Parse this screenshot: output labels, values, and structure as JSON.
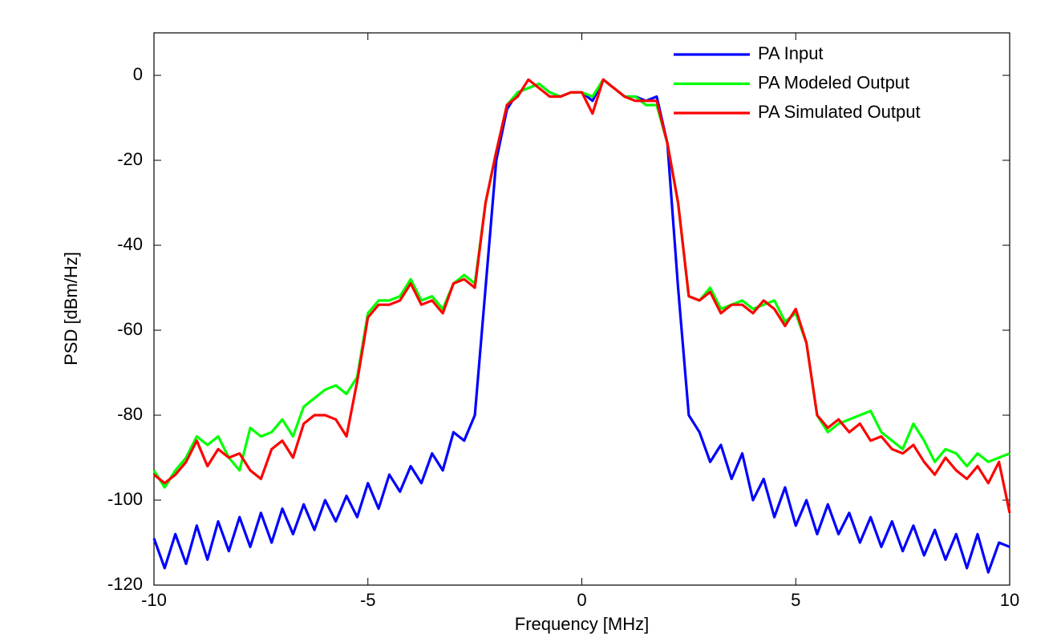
{
  "chart_data": {
    "type": "line",
    "xlabel": "Frequency [MHz]",
    "ylabel": "PSD [dBm/Hz]",
    "x": [
      -10,
      -9.75,
      -9.5,
      -9.25,
      -9,
      -8.75,
      -8.5,
      -8.25,
      -8,
      -7.75,
      -7.5,
      -7.25,
      -7,
      -6.75,
      -6.5,
      -6.25,
      -6,
      -5.75,
      -5.5,
      -5.25,
      -5,
      -4.75,
      -4.5,
      -4.25,
      -4,
      -3.75,
      -3.5,
      -3.25,
      -3,
      -2.75,
      -2.5,
      -2.25,
      -2,
      -1.75,
      -1.5,
      -1.25,
      -1,
      -0.75,
      -0.5,
      -0.25,
      0,
      0.25,
      0.5,
      0.75,
      1,
      1.25,
      1.5,
      1.75,
      2,
      2.25,
      2.5,
      2.75,
      3,
      3.25,
      3.5,
      3.75,
      4,
      4.25,
      4.5,
      4.75,
      5,
      5.25,
      5.5,
      5.75,
      6,
      6.25,
      6.5,
      6.75,
      7,
      7.25,
      7.5,
      7.75,
      8,
      8.25,
      8.5,
      8.75,
      9,
      9.25,
      9.5,
      9.75,
      10
    ],
    "series": [
      {
        "name": "PA Input",
        "color": "#0000ff",
        "values": [
          -109,
          -116,
          -108,
          -115,
          -106,
          -114,
          -105,
          -112,
          -104,
          -111,
          -103,
          -110,
          -102,
          -108,
          -101,
          -107,
          -100,
          -105,
          -99,
          -104,
          -96,
          -102,
          -94,
          -98,
          -92,
          -96,
          -89,
          -93,
          -84,
          -86,
          -80,
          -50,
          -20,
          -8,
          -4,
          -3,
          -2,
          -4,
          -5,
          -4,
          -4,
          -6,
          -1,
          -3,
          -5,
          -5,
          -6,
          -5,
          -16,
          -50,
          -80,
          -84,
          -91,
          -87,
          -95,
          -89,
          -100,
          -95,
          -104,
          -97,
          -106,
          -100,
          -108,
          -101,
          -108,
          -103,
          -110,
          -104,
          -111,
          -105,
          -112,
          -106,
          -113,
          -107,
          -114,
          -108,
          -116,
          -108,
          -117,
          -110,
          -111
        ]
      },
      {
        "name": "PA Modeled Output",
        "color": "#00ff00",
        "values": [
          -93,
          -97,
          -93,
          -90,
          -85,
          -87,
          -85,
          -90,
          -93,
          -83,
          -85,
          -84,
          -81,
          -85,
          -78,
          -76,
          -74,
          -73,
          -75,
          -71,
          -56,
          -53,
          -53,
          -52,
          -48,
          -53,
          -52,
          -55,
          -49,
          -47,
          -49,
          -30,
          -18,
          -7,
          -4,
          -3,
          -2,
          -4,
          -5,
          -4,
          -4,
          -5,
          -1,
          -3,
          -5,
          -5,
          -7,
          -7,
          -16,
          -30,
          -52,
          -53,
          -50,
          -55,
          -54,
          -53,
          -55,
          -54,
          -53,
          -58,
          -56,
          -63,
          -80,
          -84,
          -82,
          -81,
          -80,
          -79,
          -84,
          -86,
          -88,
          -82,
          -86,
          -91,
          -88,
          -89,
          -92,
          -89,
          -91,
          -90,
          -89
        ]
      },
      {
        "name": "PA Simulated Output",
        "color": "#ff0000",
        "values": [
          -94,
          -96,
          -94,
          -91,
          -86,
          -92,
          -88,
          -90,
          -89,
          -93,
          -95,
          -88,
          -86,
          -90,
          -82,
          -80,
          -80,
          -81,
          -85,
          -72,
          -57,
          -54,
          -54,
          -53,
          -49,
          -54,
          -53,
          -56,
          -49,
          -48,
          -50,
          -30,
          -18,
          -7,
          -5,
          -1,
          -3,
          -5,
          -5,
          -4,
          -4,
          -9,
          -1,
          -3,
          -5,
          -6,
          -6,
          -6,
          -16,
          -30,
          -52,
          -53,
          -51,
          -56,
          -54,
          -54,
          -56,
          -53,
          -55,
          -59,
          -55,
          -63,
          -80,
          -83,
          -81,
          -84,
          -82,
          -86,
          -85,
          -88,
          -89,
          -87,
          -91,
          -94,
          -90,
          -93,
          -95,
          -92,
          -96,
          -91,
          -103
        ]
      }
    ],
    "xlim": [
      -10,
      10
    ],
    "ylim": [
      -120,
      10
    ],
    "xticks": [
      -10,
      -5,
      0,
      5,
      10
    ],
    "yticks": [
      -120,
      -100,
      -80,
      -60,
      -40,
      -20,
      0
    ],
    "grid": false,
    "legend": "upper right"
  }
}
